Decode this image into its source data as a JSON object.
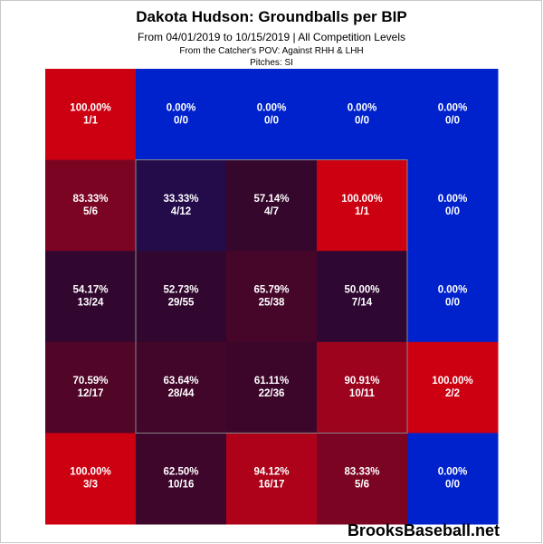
{
  "title": "Dakota Hudson: Groundballs per BIP",
  "subtitle": "From 04/01/2019 to 10/15/2019 | All Competition Levels",
  "subtitle2": "From the Catcher's POV:  Against RHH & LHH",
  "subtitle3": "Pitches:  SI",
  "watermark": "BrooksBaseball.net",
  "colors": {
    "low": "#0022cc",
    "high": "#cc0011",
    "text": "#ffffff",
    "strike_zone": "#888888"
  },
  "chart_data": {
    "type": "heatmap",
    "title": "Dakota Hudson: Groundballs per BIP",
    "rows": 5,
    "cols": 5,
    "strike_zone": {
      "rows": [
        1,
        3
      ],
      "cols": [
        1,
        3
      ]
    },
    "cells": [
      [
        {
          "pct": "100.00%",
          "count": "1/1",
          "value": 100.0
        },
        {
          "pct": "0.00%",
          "count": "0/0",
          "value": 0.0
        },
        {
          "pct": "0.00%",
          "count": "0/0",
          "value": 0.0
        },
        {
          "pct": "0.00%",
          "count": "0/0",
          "value": 0.0
        },
        {
          "pct": "0.00%",
          "count": "0/0",
          "value": 0.0
        }
      ],
      [
        {
          "pct": "83.33%",
          "count": "5/6",
          "value": 83.33
        },
        {
          "pct": "33.33%",
          "count": "4/12",
          "value": 33.33
        },
        {
          "pct": "57.14%",
          "count": "4/7",
          "value": 57.14
        },
        {
          "pct": "100.00%",
          "count": "1/1",
          "value": 100.0
        },
        {
          "pct": "0.00%",
          "count": "0/0",
          "value": 0.0
        }
      ],
      [
        {
          "pct": "54.17%",
          "count": "13/24",
          "value": 54.17
        },
        {
          "pct": "52.73%",
          "count": "29/55",
          "value": 52.73
        },
        {
          "pct": "65.79%",
          "count": "25/38",
          "value": 65.79
        },
        {
          "pct": "50.00%",
          "count": "7/14",
          "value": 50.0
        },
        {
          "pct": "0.00%",
          "count": "0/0",
          "value": 0.0
        }
      ],
      [
        {
          "pct": "70.59%",
          "count": "12/17",
          "value": 70.59
        },
        {
          "pct": "63.64%",
          "count": "28/44",
          "value": 63.64
        },
        {
          "pct": "61.11%",
          "count": "22/36",
          "value": 61.11
        },
        {
          "pct": "90.91%",
          "count": "10/11",
          "value": 90.91
        },
        {
          "pct": "100.00%",
          "count": "2/2",
          "value": 100.0
        }
      ],
      [
        {
          "pct": "100.00%",
          "count": "3/3",
          "value": 100.0
        },
        {
          "pct": "62.50%",
          "count": "10/16",
          "value": 62.5
        },
        {
          "pct": "94.12%",
          "count": "16/17",
          "value": 94.12
        },
        {
          "pct": "83.33%",
          "count": "5/6",
          "value": 83.33
        },
        {
          "pct": "0.00%",
          "count": "0/0",
          "value": 0.0
        }
      ]
    ]
  }
}
